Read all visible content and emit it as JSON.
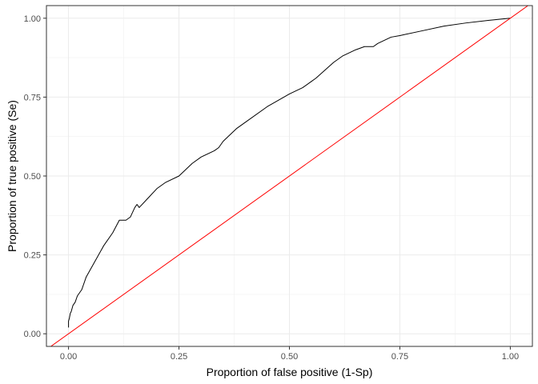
{
  "chart_data": {
    "type": "line",
    "title": "",
    "xlabel": "Proportion of false positive (1-Sp)",
    "ylabel": "Proportion of true positive (Se)",
    "xlim": [
      -0.05,
      1.05
    ],
    "ylim": [
      -0.04,
      1.04
    ],
    "x_ticks": [
      0.0,
      0.25,
      0.5,
      0.75,
      1.0
    ],
    "x_tick_labels": [
      "0.00",
      "0.25",
      "0.50",
      "0.75",
      "1.00"
    ],
    "y_ticks": [
      0.0,
      0.25,
      0.5,
      0.75,
      1.0
    ],
    "y_tick_labels": [
      "0.00",
      "0.25",
      "0.50",
      "0.75",
      "1.00"
    ],
    "grid": true,
    "panel_border": true,
    "series": [
      {
        "color": "#000000",
        "x": [
          0.0,
          0.0,
          0.002,
          0.004,
          0.006,
          0.01,
          0.015,
          0.02,
          0.03,
          0.04,
          0.06,
          0.08,
          0.1,
          0.115,
          0.13,
          0.14,
          0.15,
          0.155,
          0.16,
          0.18,
          0.2,
          0.22,
          0.25,
          0.28,
          0.3,
          0.33,
          0.34,
          0.35,
          0.38,
          0.4,
          0.45,
          0.5,
          0.53,
          0.55,
          0.56,
          0.6,
          0.62,
          0.65,
          0.67,
          0.69,
          0.7,
          0.73,
          0.75,
          0.8,
          0.85,
          0.9,
          0.95,
          1.0
        ],
        "y": [
          0.02,
          0.04,
          0.05,
          0.065,
          0.07,
          0.09,
          0.1,
          0.12,
          0.14,
          0.18,
          0.23,
          0.28,
          0.32,
          0.36,
          0.36,
          0.37,
          0.4,
          0.41,
          0.4,
          0.43,
          0.46,
          0.48,
          0.5,
          0.54,
          0.56,
          0.58,
          0.59,
          0.61,
          0.65,
          0.67,
          0.72,
          0.76,
          0.78,
          0.8,
          0.81,
          0.86,
          0.88,
          0.9,
          0.91,
          0.91,
          0.92,
          0.94,
          0.945,
          0.96,
          0.975,
          0.985,
          0.993,
          1.0
        ]
      },
      {
        "color": "#ff0000",
        "x": [
          -0.05,
          1.05
        ],
        "y": [
          -0.05,
          1.05
        ]
      }
    ]
  }
}
